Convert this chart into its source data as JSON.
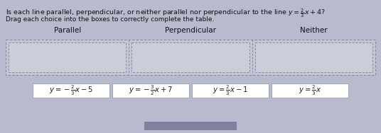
{
  "title": "Is each line parallel, perpendicular, or neither parallel nor perpendicular to the line $y = \\frac{2}{3}x + 4$?",
  "subtitle": "Drag each choice into the boxes to correctly complete the table.",
  "col_labels": [
    "Parallel",
    "Perpendicular",
    "Neither"
  ],
  "choices": [
    "$y = -\\frac{2}{3}x - 5$",
    "$y = -\\frac{3}{2}x + 7$",
    "$y = \\frac{2}{3}x - 1$",
    "$y = \\frac{2}{3}x$"
  ],
  "bg_color": "#b8bace",
  "table_bg": "#c4c6d6",
  "inner_bg": "#cbcdd9",
  "box_bg": "#ffffff",
  "title_color": "#111111",
  "label_color": "#111111",
  "choice_text_color": "#222222",
  "dashed_border_color": "#888899",
  "nav_bar_color": "#8080a0"
}
